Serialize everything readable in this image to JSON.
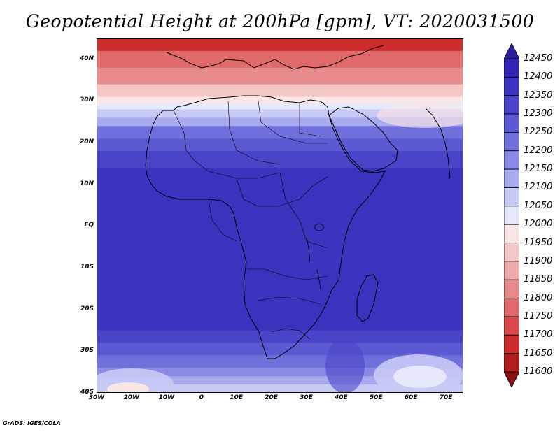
{
  "title": "Geopotential Height at 200hPa [gpm], VT: 2020031500",
  "footer": "GrADS: IGES/COLA",
  "map": {
    "lon_range": [
      -30,
      75
    ],
    "lat_range": [
      -40,
      45
    ],
    "x_ticks": [
      {
        "lon": -30,
        "label": "30W"
      },
      {
        "lon": -20,
        "label": "20W"
      },
      {
        "lon": -10,
        "label": "10W"
      },
      {
        "lon": 0,
        "label": "0"
      },
      {
        "lon": 10,
        "label": "10E"
      },
      {
        "lon": 20,
        "label": "20E"
      },
      {
        "lon": 30,
        "label": "30E"
      },
      {
        "lon": 40,
        "label": "40E"
      },
      {
        "lon": 50,
        "label": "50E"
      },
      {
        "lon": 60,
        "label": "60E"
      },
      {
        "lon": 70,
        "label": "70E"
      }
    ],
    "y_ticks": [
      {
        "lat": 40,
        "label": "40N"
      },
      {
        "lat": 30,
        "label": "30N"
      },
      {
        "lat": 20,
        "label": "20N"
      },
      {
        "lat": 10,
        "label": "10N"
      },
      {
        "lat": 0,
        "label": "EQ"
      },
      {
        "lat": -10,
        "label": "10S"
      },
      {
        "lat": -20,
        "label": "20S"
      },
      {
        "lat": -30,
        "label": "30S"
      },
      {
        "lat": -40,
        "label": "40S"
      }
    ],
    "bands": [
      {
        "lat": 45,
        "value": 11680
      },
      {
        "lat": 42,
        "value": 11760
      },
      {
        "lat": 38,
        "value": 11840
      },
      {
        "lat": 34,
        "value": 11900
      },
      {
        "lat": 31,
        "value": 11960
      },
      {
        "lat": 29.5,
        "value": 12010
      },
      {
        "lat": 28,
        "value": 12070
      },
      {
        "lat": 26,
        "value": 12130
      },
      {
        "lat": 24,
        "value": 12200
      },
      {
        "lat": 21,
        "value": 12280
      },
      {
        "lat": 18,
        "value": 12340
      },
      {
        "lat": 14,
        "value": 12380
      },
      {
        "lat": 10,
        "value": 12390
      },
      {
        "lat": -20,
        "value": 12390
      },
      {
        "lat": -22,
        "value": 12360
      },
      {
        "lat": -25,
        "value": 12310
      },
      {
        "lat": -28,
        "value": 12260
      },
      {
        "lat": -31,
        "value": 12210
      },
      {
        "lat": -34,
        "value": 12160
      },
      {
        "lat": -36,
        "value": 12110
      },
      {
        "lat": -38,
        "value": 12060
      },
      {
        "lat": -40,
        "value": 12010
      }
    ]
  },
  "colorbar": {
    "levels": [
      12450,
      12400,
      12350,
      12300,
      12250,
      12200,
      12150,
      12100,
      12050,
      12000,
      11950,
      11900,
      11850,
      11800,
      11750,
      11700,
      11650,
      11600
    ],
    "labels": [
      "12450",
      "12400",
      "12350",
      "12300",
      "12250",
      "12200",
      "12150",
      "12100",
      "12050",
      "12000",
      "11950",
      "11900",
      "11850",
      "11800",
      "11750",
      "11700",
      "11650",
      "11600"
    ],
    "colors": [
      "#2a1ea0",
      "#2f25b2",
      "#3a33be",
      "#4a45c8",
      "#5c5ad2",
      "#7070dc",
      "#8a8ae4",
      "#a8aaee",
      "#c8caf6",
      "#e6e8fc",
      "#fbe6e6",
      "#f5c8c8",
      "#eeaaaa",
      "#e68a8a",
      "#e06a6a",
      "#d84a4a",
      "#cc2e2e",
      "#b01e1e",
      "#8c1010"
    ]
  }
}
